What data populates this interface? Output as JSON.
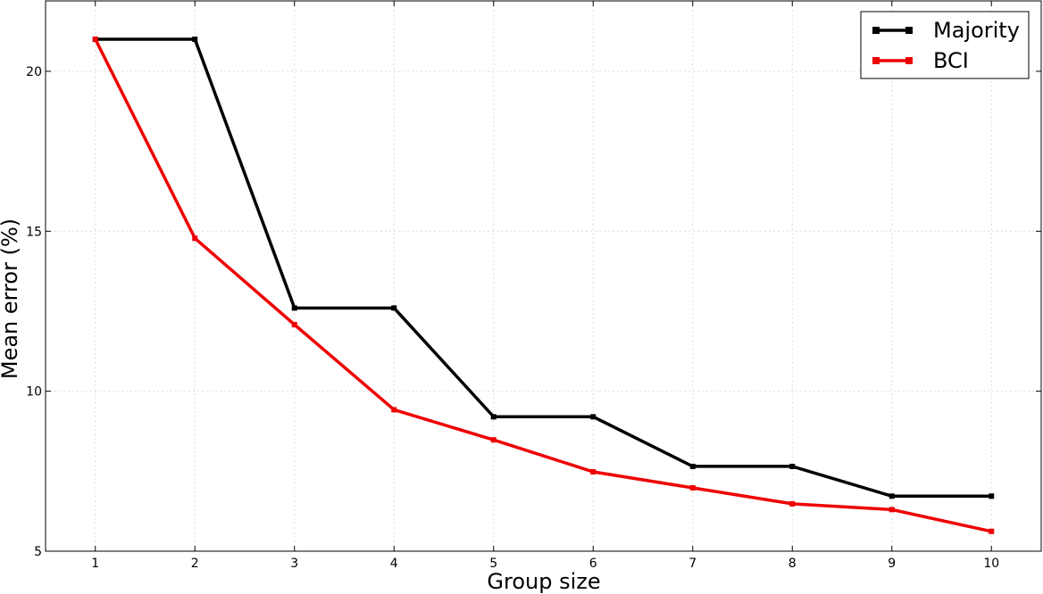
{
  "chart_data": {
    "type": "line",
    "title": "",
    "xlabel": "Group size",
    "ylabel": "Mean error (%)",
    "x": [
      1,
      2,
      3,
      4,
      5,
      6,
      7,
      8,
      9,
      10
    ],
    "xlim": [
      0.5,
      10.5
    ],
    "ylim": [
      5,
      22.2
    ],
    "xticks": [
      1,
      2,
      3,
      4,
      5,
      6,
      7,
      8,
      9,
      10
    ],
    "yticks": [
      5,
      10,
      15,
      20
    ],
    "grid": true,
    "legend_position": "top-right",
    "series": [
      {
        "name": "Majority",
        "color": "#000000",
        "marker": "square",
        "values": [
          21.0,
          21.0,
          12.6,
          12.6,
          9.2,
          9.2,
          7.65,
          7.65,
          6.72,
          6.72
        ]
      },
      {
        "name": "BCI",
        "color": "#ee0000",
        "marker": "square",
        "values": [
          21.0,
          14.78,
          12.08,
          9.42,
          8.48,
          7.48,
          6.98,
          6.48,
          6.3,
          5.62
        ]
      }
    ]
  }
}
